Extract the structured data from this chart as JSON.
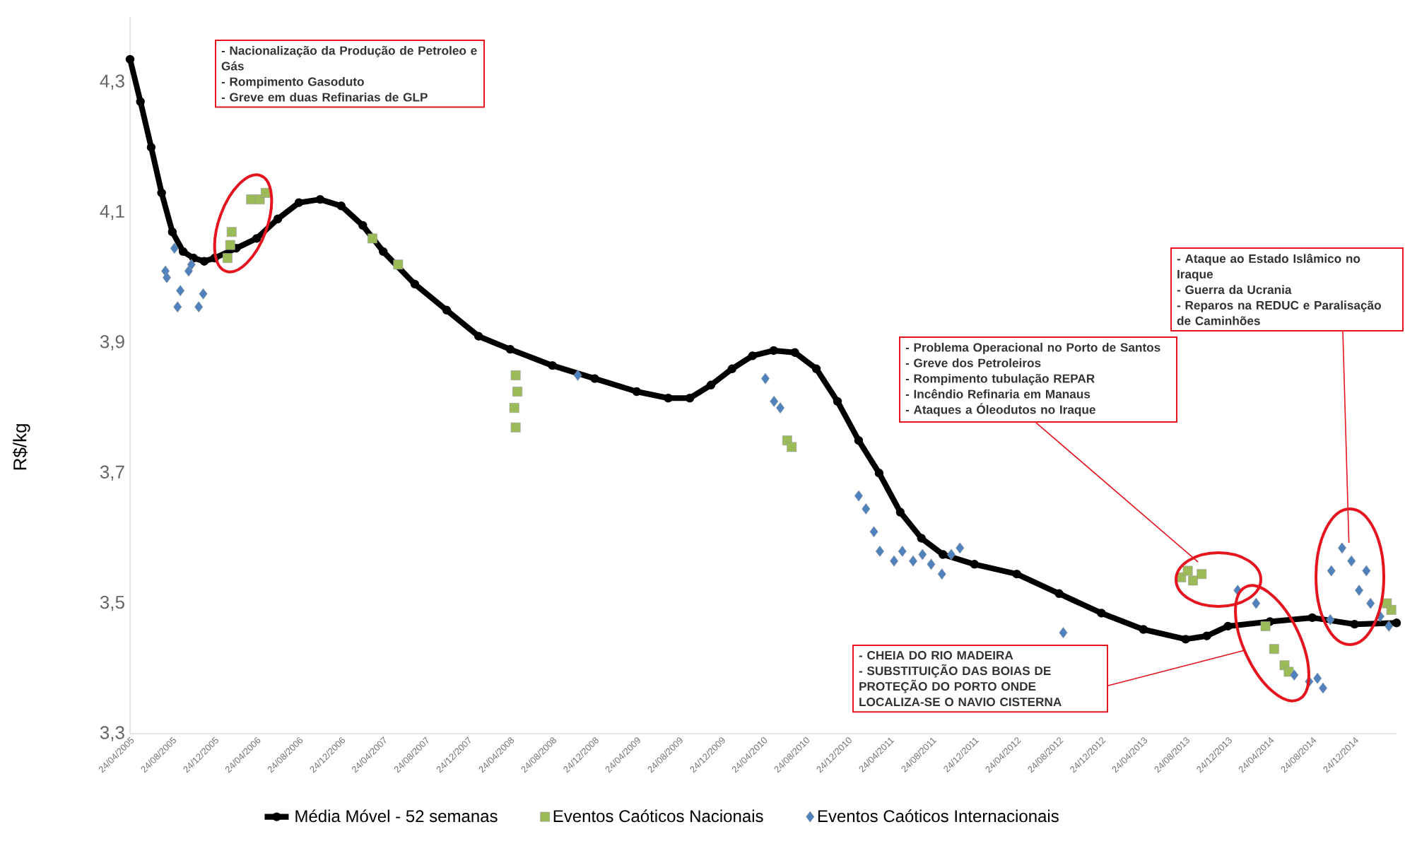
{
  "chart_data": {
    "type": "scatter",
    "ylabel": "R$/kg",
    "xlim": [
      "2005-04-24",
      "2015-04-24"
    ],
    "ylim": [
      3.3,
      4.4
    ],
    "yticks": [
      {
        "value": 3.3,
        "label": "3,3"
      },
      {
        "value": 3.5,
        "label": "3,5"
      },
      {
        "value": 3.7,
        "label": "3,7"
      },
      {
        "value": 3.9,
        "label": "3,9"
      },
      {
        "value": 4.1,
        "label": "4,1"
      },
      {
        "value": 4.3,
        "label": "4,3"
      }
    ],
    "xticks": [
      {
        "value": "2005-04-24",
        "label": "24/04/2005"
      },
      {
        "value": "2005-08-24",
        "label": "24/08/2005"
      },
      {
        "value": "2005-12-24",
        "label": "24/12/2005"
      },
      {
        "value": "2006-04-24",
        "label": "24/04/2006"
      },
      {
        "value": "2006-08-24",
        "label": "24/08/2006"
      },
      {
        "value": "2006-12-24",
        "label": "24/12/2006"
      },
      {
        "value": "2007-04-24",
        "label": "24/04/2007"
      },
      {
        "value": "2007-08-24",
        "label": "24/08/2007"
      },
      {
        "value": "2007-12-24",
        "label": "24/12/2007"
      },
      {
        "value": "2008-04-24",
        "label": "24/04/2008"
      },
      {
        "value": "2008-08-24",
        "label": "24/08/2008"
      },
      {
        "value": "2008-12-24",
        "label": "24/12/2008"
      },
      {
        "value": "2009-04-24",
        "label": "24/04/2009"
      },
      {
        "value": "2009-08-24",
        "label": "24/08/2009"
      },
      {
        "value": "2009-12-24",
        "label": "24/12/2009"
      },
      {
        "value": "2010-04-24",
        "label": "24/04/2010"
      },
      {
        "value": "2010-08-24",
        "label": "24/08/2010"
      },
      {
        "value": "2010-12-24",
        "label": "24/12/2010"
      },
      {
        "value": "2011-04-24",
        "label": "24/04/2011"
      },
      {
        "value": "2011-08-24",
        "label": "24/08/2011"
      },
      {
        "value": "2011-12-24",
        "label": "24/12/2011"
      },
      {
        "value": "2012-04-24",
        "label": "24/04/2012"
      },
      {
        "value": "2012-08-24",
        "label": "24/08/2012"
      },
      {
        "value": "2012-12-24",
        "label": "24/12/2012"
      },
      {
        "value": "2013-04-24",
        "label": "24/04/2013"
      },
      {
        "value": "2013-08-24",
        "label": "24/08/2013"
      },
      {
        "value": "2013-12-24",
        "label": "24/12/2013"
      },
      {
        "value": "2014-04-24",
        "label": "24/04/2014"
      },
      {
        "value": "2014-08-24",
        "label": "24/08/2014"
      },
      {
        "value": "2014-12-24",
        "label": "24/12/2014"
      }
    ],
    "legend": "bottom",
    "series": [
      {
        "name": "Média Móvel - 52 semanas",
        "type": "line",
        "color": "#000000",
        "marker": "circle",
        "x": [
          "2005-04-24",
          "2005-05-24",
          "2005-06-24",
          "2005-07-24",
          "2005-08-24",
          "2005-09-24",
          "2005-10-24",
          "2005-11-24",
          "2005-12-24",
          "2006-02-24",
          "2006-04-24",
          "2006-06-24",
          "2006-08-24",
          "2006-10-24",
          "2006-12-24",
          "2007-02-24",
          "2007-04-24",
          "2007-07-24",
          "2007-10-24",
          "2008-01-24",
          "2008-04-24",
          "2008-08-24",
          "2008-12-24",
          "2009-04-24",
          "2009-07-24",
          "2009-09-24",
          "2009-11-24",
          "2010-01-24",
          "2010-03-24",
          "2010-05-24",
          "2010-07-24",
          "2010-09-24",
          "2010-11-24",
          "2011-01-24",
          "2011-03-24",
          "2011-05-24",
          "2011-07-24",
          "2011-09-24",
          "2011-12-24",
          "2012-04-24",
          "2012-08-24",
          "2012-12-24",
          "2013-04-24",
          "2013-08-24",
          "2013-10-24",
          "2013-12-24",
          "2014-04-24",
          "2014-08-24",
          "2014-12-24",
          "2015-04-24"
        ],
        "values": [
          4.335,
          4.27,
          4.2,
          4.13,
          4.07,
          4.04,
          4.03,
          4.025,
          4.03,
          4.045,
          4.06,
          4.09,
          4.115,
          4.12,
          4.11,
          4.08,
          4.04,
          3.99,
          3.95,
          3.91,
          3.89,
          3.865,
          3.845,
          3.825,
          3.815,
          3.815,
          3.835,
          3.86,
          3.88,
          3.888,
          3.885,
          3.86,
          3.81,
          3.75,
          3.7,
          3.64,
          3.6,
          3.575,
          3.56,
          3.545,
          3.515,
          3.485,
          3.46,
          3.445,
          3.45,
          3.465,
          3.472,
          3.478,
          3.468,
          3.47
        ]
      },
      {
        "name": "Eventos Caóticos Nacionais",
        "color": "#9bbb59",
        "marker": "square",
        "x": [
          "2006-01-30",
          "2006-02-07",
          "2006-02-11",
          "2006-04-08",
          "2006-05-03",
          "2006-05-20",
          "2007-03-24",
          "2007-06-06",
          "2008-05-10",
          "2008-05-15",
          "2008-05-06",
          "2008-05-10",
          "2010-07-02",
          "2010-07-15",
          "2013-08-11",
          "2013-08-30",
          "2013-09-14",
          "2013-10-09",
          "2014-04-11",
          "2014-05-06",
          "2014-06-05",
          "2014-06-17",
          "2015-03-27",
          "2015-04-09"
        ],
        "values": [
          4.03,
          4.05,
          4.07,
          4.12,
          4.12,
          4.13,
          4.06,
          4.02,
          3.85,
          3.825,
          3.8,
          3.77,
          3.75,
          3.74,
          3.54,
          3.55,
          3.535,
          3.545,
          3.465,
          3.43,
          3.405,
          3.395,
          3.5,
          3.49
        ]
      },
      {
        "name": "Eventos Caóticos Internacionais",
        "color": "#4f81bd",
        "marker": "diamond",
        "x": [
          "2005-08-04",
          "2005-08-08",
          "2005-08-30",
          "2005-09-08",
          "2005-09-16",
          "2005-10-10",
          "2005-10-18",
          "2005-11-08",
          "2005-11-21",
          "2008-11-05",
          "2010-04-30",
          "2010-05-25",
          "2010-06-12",
          "2011-01-24",
          "2011-02-14",
          "2011-03-09",
          "2011-03-26",
          "2011-05-06",
          "2011-05-30",
          "2011-06-30",
          "2011-07-27",
          "2011-08-21",
          "2011-09-21",
          "2011-10-18",
          "2011-11-12",
          "2012-09-05",
          "2014-01-21",
          "2014-03-15",
          "2014-07-03",
          "2014-08-15",
          "2014-09-08",
          "2014-09-24",
          "2014-10-15",
          "2014-10-18",
          "2014-11-18",
          "2014-12-15",
          "2015-01-27",
          "2015-01-06",
          "2015-02-08",
          "2015-03-08",
          "2015-04-02"
        ],
        "values": [
          4.01,
          4.0,
          4.045,
          3.955,
          3.98,
          4.01,
          4.02,
          3.955,
          3.975,
          3.85,
          3.845,
          3.81,
          3.8,
          3.665,
          3.645,
          3.61,
          3.58,
          3.565,
          3.58,
          3.565,
          3.575,
          3.56,
          3.545,
          3.575,
          3.585,
          3.455,
          3.52,
          3.5,
          3.39,
          3.38,
          3.385,
          3.37,
          3.475,
          3.55,
          3.585,
          3.565,
          3.55,
          3.52,
          3.5,
          3.48,
          3.465
        ]
      }
    ],
    "annotations": [
      "- Nacionalização da Produção de Petroleo e Gás\n- Rompimento Gasoduto\n- Greve em duas Refinarias de GLP",
      "- Ataque ao Estado Islâmico no Iraque\n- Guerra da Ucrania\n- Reparos na REDUC e Paralisação de Caminhões",
      "- Problema Operacional no Porto de Santos\n- Greve dos Petroleiros\n- Rompimento tubulação REPAR\n- Incêndio Refinaria em Manaus\n- Ataques a Óleodutos no Iraque",
      "- CHEIA DO RIO MADEIRA\n- SUBSTITUIÇÃO DAS BOIAS DE PROTEÇÃO DO PORTO ONDE LOCALIZA-SE O NAVIO CISTERNA"
    ]
  }
}
